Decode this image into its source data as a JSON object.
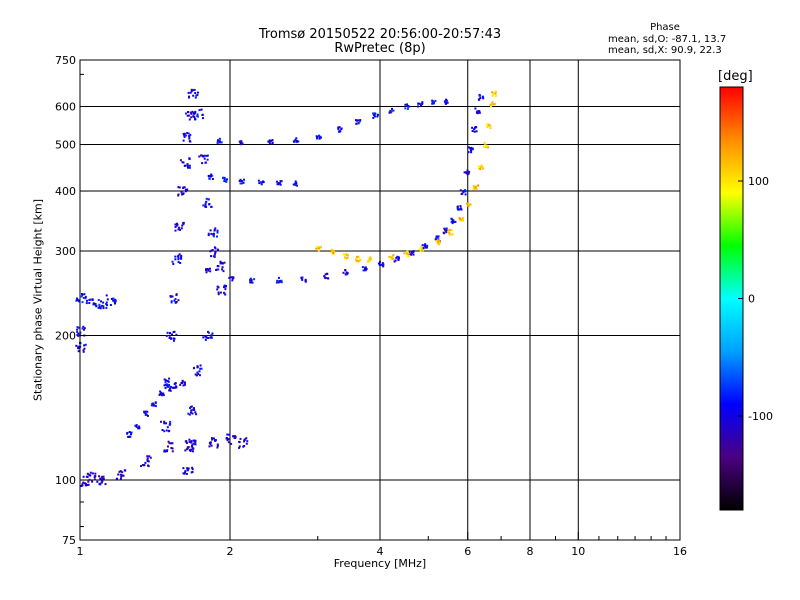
{
  "chart_data": {
    "type": "scatter",
    "title": "Tromsø 20150522 20:56:00-20:57:43",
    "subtitle": "RwPretec (8p)",
    "xlabel": "Frequency [MHz]",
    "ylabel": "Stationary phase Virtual Height [km]",
    "x_scale": "log",
    "y_scale": "log",
    "xlim": [
      1,
      16
    ],
    "ylim": [
      75,
      750
    ],
    "x_ticks": [
      1,
      2,
      4,
      6,
      8,
      10,
      16
    ],
    "y_ticks": [
      75,
      100,
      200,
      300,
      400,
      500,
      600,
      750
    ],
    "x_grid": [
      2,
      4,
      6,
      8,
      10
    ],
    "y_grid": [
      100,
      200,
      300,
      400,
      500,
      600
    ],
    "grid": true,
    "phase_stats": {
      "title": "Phase",
      "o_mode": "mean, sd,O: -87.1, 13.7",
      "x_mode": "mean, sd,X:  90.9, 22.3"
    },
    "colorbar": {
      "unit": "[deg]",
      "tick_values": [
        100,
        0,
        -100
      ],
      "tick_labels": [
        "100",
        "0",
        "-100"
      ],
      "range": [
        -180,
        180
      ],
      "colors": [
        "#000000",
        "#4b0082",
        "#0000ff",
        "#00a0ff",
        "#00ffff",
        "#00ff00",
        "#ffff00",
        "#ff8c00",
        "#ff0000"
      ]
    },
    "series": [
      {
        "kind": "band",
        "values": [
          [
            1.48,
            130
          ],
          [
            1.5,
            160
          ],
          [
            1.52,
            200
          ],
          [
            1.54,
            240
          ],
          [
            1.56,
            290
          ],
          [
            1.58,
            340
          ],
          [
            1.6,
            400
          ],
          [
            1.62,
            460
          ],
          [
            1.64,
            520
          ],
          [
            1.66,
            580
          ],
          [
            1.68,
            640
          ],
          [
            1.72,
            580
          ],
          [
            1.76,
            470
          ],
          [
            1.8,
            380
          ],
          [
            1.84,
            330
          ],
          [
            1.86,
            300
          ],
          [
            1.9,
            280
          ],
          [
            1.92,
            250
          ],
          [
            1.8,
            200
          ],
          [
            1.72,
            170
          ],
          [
            1.68,
            140
          ],
          [
            1.66,
            120
          ],
          [
            1.64,
            105
          ]
        ],
        "phase": -100
      },
      {
        "kind": "curve",
        "values": [
          [
            1.8,
            275
          ],
          [
            2.0,
            265
          ],
          [
            2.2,
            262
          ],
          [
            2.5,
            262
          ],
          [
            2.8,
            263
          ],
          [
            3.1,
            267
          ],
          [
            3.4,
            272
          ],
          [
            3.7,
            277
          ],
          [
            4.0,
            283
          ],
          [
            4.3,
            290
          ],
          [
            4.6,
            298
          ],
          [
            4.9,
            308
          ],
          [
            5.2,
            320
          ],
          [
            5.4,
            332
          ],
          [
            5.6,
            348
          ],
          [
            5.75,
            370
          ],
          [
            5.85,
            400
          ],
          [
            5.95,
            440
          ],
          [
            6.05,
            490
          ],
          [
            6.15,
            540
          ],
          [
            6.25,
            590
          ],
          [
            6.35,
            630
          ]
        ],
        "phase": -100
      },
      {
        "kind": "curve",
        "values": [
          [
            3.0,
            305
          ],
          [
            3.2,
            300
          ],
          [
            3.4,
            294
          ],
          [
            3.6,
            290
          ],
          [
            3.8,
            289
          ],
          [
            4.2,
            293
          ],
          [
            4.5,
            297
          ],
          [
            4.8,
            305
          ],
          [
            5.2,
            315
          ],
          [
            5.5,
            330
          ],
          [
            5.8,
            350
          ],
          [
            6.0,
            375
          ],
          [
            6.2,
            410
          ],
          [
            6.35,
            450
          ],
          [
            6.5,
            500
          ],
          [
            6.6,
            550
          ],
          [
            6.7,
            610
          ],
          [
            6.75,
            640
          ]
        ],
        "phase": 110
      },
      {
        "kind": "curve",
        "values": [
          [
            1.9,
            512
          ],
          [
            2.1,
            508
          ],
          [
            2.4,
            508
          ],
          [
            2.7,
            512
          ],
          [
            3.0,
            522
          ],
          [
            3.3,
            540
          ],
          [
            3.6,
            560
          ],
          [
            3.9,
            577
          ],
          [
            4.2,
            590
          ],
          [
            4.5,
            602
          ],
          [
            4.8,
            610
          ],
          [
            5.1,
            615
          ],
          [
            5.4,
            617
          ]
        ],
        "phase": -95
      },
      {
        "kind": "curve",
        "values": [
          [
            1.82,
            430
          ],
          [
            1.95,
            425
          ],
          [
            2.1,
            420
          ],
          [
            2.3,
            418
          ],
          [
            2.5,
            417
          ],
          [
            2.7,
            417
          ]
        ],
        "phase": -95
      },
      {
        "kind": "band",
        "values": [
          [
            1.02,
            100
          ],
          [
            1.05,
            102
          ],
          [
            1.1,
            100
          ],
          [
            1.2,
            103
          ],
          [
            1.35,
            110
          ],
          [
            1.5,
            118
          ],
          [
            1.65,
            118
          ],
          [
            1.85,
            120
          ],
          [
            2.0,
            122
          ],
          [
            2.12,
            120
          ]
        ],
        "phase": -110
      },
      {
        "kind": "band",
        "values": [
          [
            1.0,
            240
          ],
          [
            1.05,
            235
          ],
          [
            1.1,
            234
          ],
          [
            1.15,
            238
          ],
          [
            1.0,
            205
          ],
          [
            1.0,
            190
          ]
        ],
        "phase": -95
      },
      {
        "kind": "curve",
        "values": [
          [
            1.25,
            125
          ],
          [
            1.3,
            130
          ],
          [
            1.35,
            138
          ],
          [
            1.4,
            145
          ],
          [
            1.45,
            152
          ],
          [
            1.5,
            156
          ],
          [
            1.55,
            158
          ],
          [
            1.6,
            160
          ]
        ],
        "phase": -100
      }
    ]
  }
}
